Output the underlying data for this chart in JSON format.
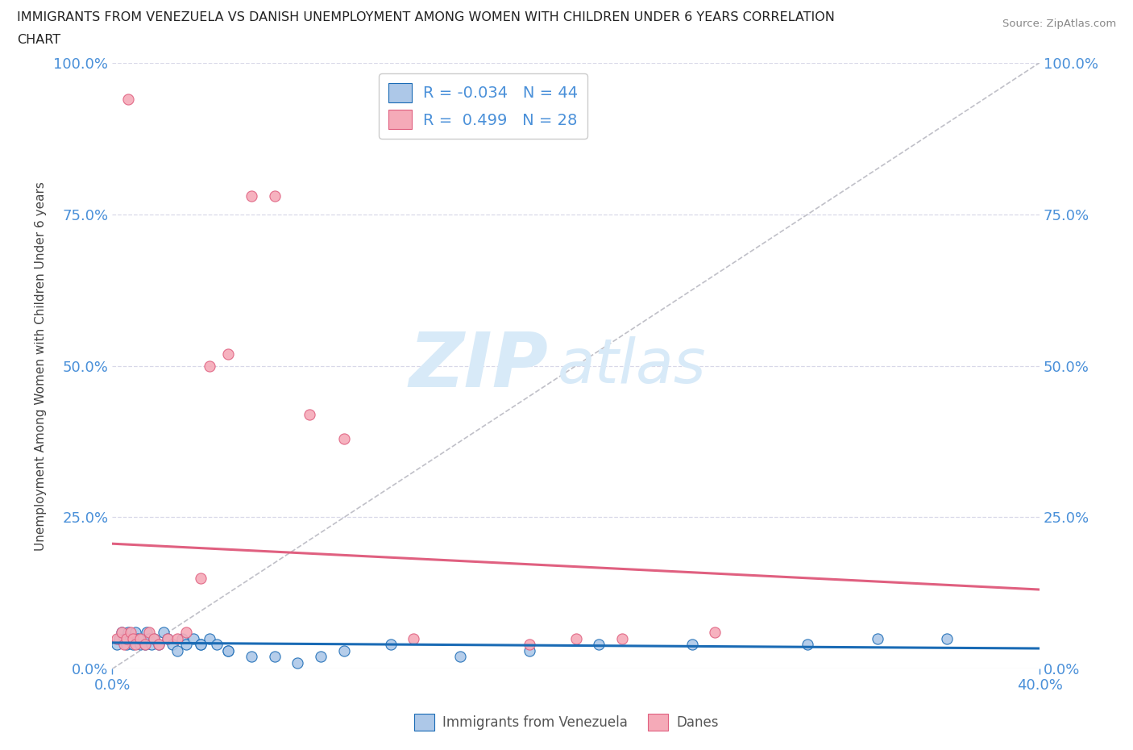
{
  "title_line1": "IMMIGRANTS FROM VENEZUELA VS DANISH UNEMPLOYMENT AMONG WOMEN WITH CHILDREN UNDER 6 YEARS CORRELATION",
  "title_line2": "CHART",
  "source": "Source: ZipAtlas.com",
  "ylabel": "Unemployment Among Women with Children Under 6 years",
  "xlim": [
    0.0,
    0.4
  ],
  "ylim": [
    0.0,
    1.0
  ],
  "legend_label1": "Immigrants from Venezuela",
  "legend_label2": "Danes",
  "r1": -0.034,
  "n1": 44,
  "r2": 0.499,
  "n2": 28,
  "color1": "#adc8e8",
  "color2": "#f5aab8",
  "line1_color": "#1a6bb5",
  "line2_color": "#e06080",
  "diagonal_color": "#c0c0c8",
  "background_color": "#ffffff",
  "watermark_zip": "ZIP",
  "watermark_atlas": "atlas",
  "watermark_color": "#d8eaf8",
  "grid_color": "#d8d8e8",
  "title_color": "#222222",
  "axis_label_color": "#4a90d9",
  "ylabel_color": "#444444",
  "source_color": "#888888",
  "blue_scatter_x": [
    0.002,
    0.003,
    0.004,
    0.005,
    0.006,
    0.007,
    0.008,
    0.009,
    0.01,
    0.011,
    0.012,
    0.013,
    0.014,
    0.015,
    0.016,
    0.017,
    0.018,
    0.02,
    0.022,
    0.024,
    0.026,
    0.028,
    0.03,
    0.032,
    0.035,
    0.038,
    0.05,
    0.06,
    0.07,
    0.08,
    0.09,
    0.1,
    0.12,
    0.15,
    0.18,
    0.21,
    0.25,
    0.3,
    0.33,
    0.36,
    0.038,
    0.042,
    0.045,
    0.05
  ],
  "blue_scatter_y": [
    0.04,
    0.05,
    0.06,
    0.05,
    0.04,
    0.06,
    0.05,
    0.04,
    0.06,
    0.05,
    0.04,
    0.05,
    0.04,
    0.06,
    0.05,
    0.04,
    0.05,
    0.04,
    0.06,
    0.05,
    0.04,
    0.03,
    0.05,
    0.04,
    0.05,
    0.04,
    0.03,
    0.02,
    0.02,
    0.01,
    0.02,
    0.03,
    0.04,
    0.02,
    0.03,
    0.04,
    0.04,
    0.04,
    0.05,
    0.05,
    0.04,
    0.05,
    0.04,
    0.03
  ],
  "pink_scatter_x": [
    0.002,
    0.004,
    0.005,
    0.006,
    0.007,
    0.008,
    0.009,
    0.01,
    0.012,
    0.014,
    0.016,
    0.018,
    0.02,
    0.024,
    0.028,
    0.032,
    0.038,
    0.042,
    0.05,
    0.06,
    0.07,
    0.085,
    0.1,
    0.13,
    0.18,
    0.2,
    0.22,
    0.26
  ],
  "pink_scatter_y": [
    0.05,
    0.06,
    0.04,
    0.05,
    0.94,
    0.06,
    0.05,
    0.04,
    0.05,
    0.04,
    0.06,
    0.05,
    0.04,
    0.05,
    0.05,
    0.06,
    0.15,
    0.5,
    0.52,
    0.78,
    0.78,
    0.42,
    0.38,
    0.05,
    0.04,
    0.05,
    0.05,
    0.06
  ]
}
